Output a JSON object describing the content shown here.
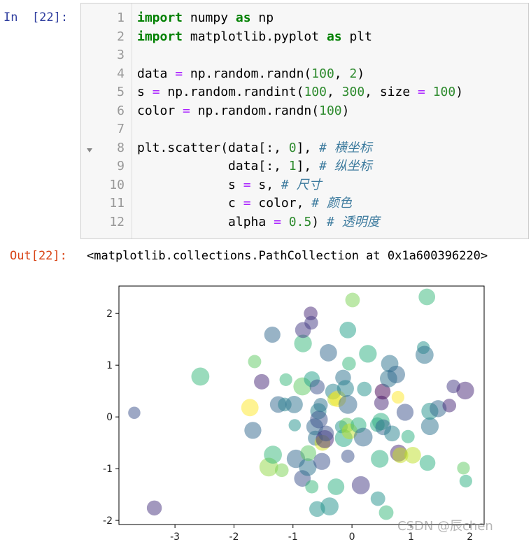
{
  "input_prompt": "In  [22]:",
  "line_numbers": [
    1,
    2,
    3,
    4,
    5,
    6,
    7,
    8,
    9,
    10,
    11,
    12
  ],
  "code_lines": [
    [
      {
        "text": "import",
        "style": "kw"
      },
      {
        "text": " numpy "
      },
      {
        "text": "as",
        "style": "kw"
      },
      {
        "text": " np"
      }
    ],
    [
      {
        "text": "import",
        "style": "kw"
      },
      {
        "text": " matplotlib.pyplot "
      },
      {
        "text": "as",
        "style": "kw"
      },
      {
        "text": " plt"
      }
    ],
    [],
    [
      {
        "text": "data "
      },
      {
        "text": "=",
        "style": "op"
      },
      {
        "text": " np.random.randn("
      },
      {
        "text": "100",
        "style": "num"
      },
      {
        "text": ", "
      },
      {
        "text": "2",
        "style": "num"
      },
      {
        "text": ")"
      }
    ],
    [
      {
        "text": "s "
      },
      {
        "text": "=",
        "style": "op"
      },
      {
        "text": " np.random.randint("
      },
      {
        "text": "100",
        "style": "num"
      },
      {
        "text": ", "
      },
      {
        "text": "300",
        "style": "num"
      },
      {
        "text": ", size "
      },
      {
        "text": "=",
        "style": "op"
      },
      {
        "text": " "
      },
      {
        "text": "100",
        "style": "num"
      },
      {
        "text": ")"
      }
    ],
    [
      {
        "text": "color "
      },
      {
        "text": "=",
        "style": "op"
      },
      {
        "text": " np.random.randn("
      },
      {
        "text": "100",
        "style": "num"
      },
      {
        "text": ")"
      }
    ],
    [],
    [
      {
        "text": "plt.scatter(data[:, "
      },
      {
        "text": "0",
        "style": "num"
      },
      {
        "text": "], "
      },
      {
        "text": "# 横坐标",
        "style": "cm"
      }
    ],
    [
      {
        "text": "            data[:, "
      },
      {
        "text": "1",
        "style": "num"
      },
      {
        "text": "], "
      },
      {
        "text": "# 纵坐标",
        "style": "cm"
      }
    ],
    [
      {
        "text": "            s "
      },
      {
        "text": "=",
        "style": "op"
      },
      {
        "text": " s, "
      },
      {
        "text": "# 尺寸",
        "style": "cm"
      }
    ],
    [
      {
        "text": "            c "
      },
      {
        "text": "=",
        "style": "op"
      },
      {
        "text": " color, "
      },
      {
        "text": "# 颜色",
        "style": "cm"
      }
    ],
    [
      {
        "text": "            alpha "
      },
      {
        "text": "=",
        "style": "op"
      },
      {
        "text": " "
      },
      {
        "text": "0.5",
        "style": "num"
      },
      {
        "text": ") "
      },
      {
        "text": "# 透明度",
        "style": "cm"
      }
    ]
  ],
  "output_prompt": "Out[22]:",
  "output_text": "<matplotlib.collections.PathCollection at 0x1a600396220>",
  "watermark": "CSDN @辰chen",
  "chart_data": {
    "type": "scatter",
    "alpha": 0.5,
    "xlim": [
      -3.95,
      2.24
    ],
    "ylim": [
      -2.08,
      2.53
    ],
    "xticks": [
      -3,
      -2,
      -1,
      0,
      1,
      2
    ],
    "yticks": [
      -2,
      -1,
      0,
      1,
      2
    ],
    "x": [
      -3.69,
      -3.35,
      -2.57,
      -1.73,
      -1.68,
      -1.65,
      -1.53,
      -1.35,
      -1.41,
      -1.34,
      -1.25,
      -1.19,
      -1.14,
      -1.12,
      -0.98,
      -0.97,
      -0.95,
      -0.84,
      -0.84,
      -0.83,
      -0.83,
      -0.75,
      -0.74,
      -0.7,
      -0.69,
      -0.68,
      -0.68,
      -0.63,
      -0.62,
      -0.59,
      -0.59,
      -0.57,
      -0.56,
      -0.53,
      -0.51,
      -0.5,
      -0.46,
      -0.44,
      -0.4,
      -0.38,
      -0.32,
      -0.3,
      -0.27,
      -0.24,
      -0.18,
      -0.15,
      -0.14,
      -0.11,
      -0.09,
      -0.07,
      -0.07,
      -0.07,
      -0.05,
      -0.04,
      0.01,
      0.11,
      0.15,
      0.19,
      0.21,
      0.27,
      0.43,
      0.44,
      0.47,
      0.49,
      0.5,
      0.52,
      0.53,
      0.58,
      0.62,
      0.64,
      0.68,
      0.75,
      0.78,
      0.79,
      0.82,
      0.9,
      0.95,
      1.03,
      1.21,
      1.23,
      1.27,
      1.28,
      1.32,
      1.32,
      1.46,
      1.65,
      1.72,
      1.89,
      1.92,
      1.93
    ],
    "y": [
      0.08,
      -1.76,
      0.78,
      0.18,
      -0.26,
      1.07,
      0.68,
      1.59,
      -0.97,
      -0.73,
      0.24,
      -1.03,
      0.24,
      0.72,
      0.24,
      -0.16,
      -0.81,
      0.59,
      -1.19,
      1.42,
      1.68,
      -0.97,
      -0.7,
      2.0,
      1.82,
      0.73,
      -1.35,
      -0.19,
      -0.41,
      0.58,
      -1.78,
      0.11,
      -0.05,
      0.23,
      -0.86,
      -0.5,
      -0.43,
      -0.32,
      1.24,
      -1.73,
      0.49,
      0.34,
      -1.35,
      0.35,
      -0.19,
      0.76,
      -0.41,
      0.55,
      -0.16,
      -0.76,
      0.24,
      1.68,
      1.03,
      -0.28,
      2.26,
      -0.16,
      -1.32,
      -0.39,
      0.54,
      1.22,
      -0.15,
      -1.58,
      -0.81,
      -0.09,
      0.27,
      0.49,
      -0.2,
      -1.85,
      0.74,
      1.03,
      -0.32,
      0.82,
      0.38,
      -0.7,
      -0.74,
      0.09,
      -0.38,
      -0.74,
      1.34,
      1.2,
      2.32,
      -0.89,
      -0.18,
      0.11,
      0.16,
      0.22,
      0.59,
      -0.99,
      0.51,
      -1.24
    ],
    "sizes": [
      120,
      180,
      260,
      240,
      230,
      140,
      190,
      210,
      280,
      260,
      220,
      150,
      150,
      130,
      240,
      120,
      270,
      260,
      220,
      250,
      200,
      250,
      200,
      150,
      150,
      200,
      140,
      230,
      180,
      180,
      200,
      210,
      250,
      160,
      230,
      200,
      260,
      200,
      240,
      260,
      200,
      150,
      220,
      220,
      130,
      200,
      250,
      230,
      180,
      140,
      280,
      220,
      150,
      200,
      170,
      200,
      260,
      280,
      170,
      250,
      170,
      170,
      250,
      240,
      170,
      200,
      200,
      170,
      240,
      240,
      200,
      250,
      130,
      230,
      200,
      230,
      140,
      220,
      130,
      260,
      220,
      200,
      250,
      230,
      230,
      150,
      150,
      130,
      250,
      130
    ],
    "colors": [
      "#3b528b",
      "#46327e",
      "#35b779",
      "#fde725",
      "#31688e",
      "#5ec962",
      "#482878",
      "#31688e",
      "#90d743",
      "#35b779",
      "#31688e",
      "#7ad151",
      "#26828e",
      "#35b779",
      "#2c728e",
      "#21918c",
      "#31688e",
      "#5ec962",
      "#3b528b",
      "#35b779",
      "#443983",
      "#2c728e",
      "#5ec962",
      "#482878",
      "#443983",
      "#1fa088",
      "#35b779",
      "#31688e",
      "#2c728e",
      "#3b528b",
      "#21918c",
      "#26828e",
      "#3b528b",
      "#2c728e",
      "#3b528b",
      "#d8e219",
      "#482878",
      "#3b528b",
      "#31688e",
      "#21918c",
      "#26828e",
      "#bddf26",
      "#2ab07f",
      "#fde725",
      "#21918c",
      "#2c728e",
      "#22a884",
      "#26828e",
      "#5ec962",
      "#3b528b",
      "#31688e",
      "#1fa088",
      "#35b779",
      "#bddf26",
      "#7ad151",
      "#2ab07f",
      "#443983",
      "#31688e",
      "#21918c",
      "#2ab07f",
      "#22a884",
      "#21918c",
      "#2ab07f",
      "#2ab07f",
      "#482878",
      "#440154",
      "#31688e",
      "#35b779",
      "#2c728e",
      "#2c728e",
      "#26828e",
      "#31688e",
      "#fde725",
      "#482878",
      "#c8e020",
      "#3b528b",
      "#2ab07f",
      "#bddf26",
      "#21918c",
      "#2c728e",
      "#35b779",
      "#2ab07f",
      "#2c728e",
      "#21918c",
      "#31688e",
      "#482878",
      "#443983",
      "#5ec962",
      "#482878",
      "#2ab07f"
    ]
  }
}
